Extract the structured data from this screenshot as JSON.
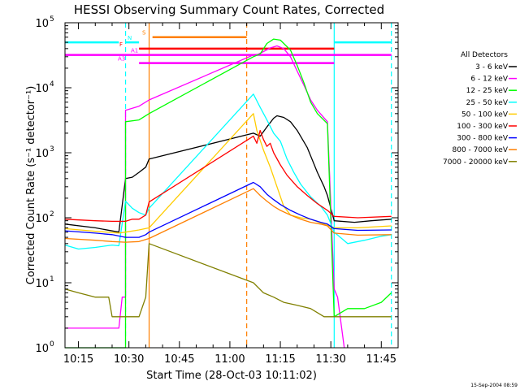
{
  "chart_data": {
    "type": "line",
    "title": "HESSI Observing Summary Count Rates, Corrected",
    "xlabel": "Start Time (28-Oct-03 10:11:02)",
    "ylabel": "Corrected Count Rate (s⁻¹ detector⁻¹)",
    "yscale": "log",
    "xlim": [
      "10:11",
      "11:50"
    ],
    "ylim": [
      1,
      100000
    ],
    "xticks": [
      "10:15",
      "10:30",
      "10:45",
      "11:00",
      "11:15",
      "11:30",
      "11:45"
    ],
    "yticks": [
      {
        "base": "10",
        "exp": "0",
        "value": 1
      },
      {
        "base": "10",
        "exp": "1",
        "value": 10
      },
      {
        "base": "10",
        "exp": "2",
        "value": 100
      },
      {
        "base": "10",
        "exp": "3",
        "value": 1000
      },
      {
        "base": "10",
        "exp": "4",
        "value": 10000
      },
      {
        "base": "10",
        "exp": "5",
        "value": 100000
      }
    ],
    "legend_title": "All Detectors",
    "legend_position": "right",
    "series": [
      {
        "name": "3 - 6 keV",
        "color": "#000000",
        "points": [
          [
            "10:11",
            80
          ],
          [
            "10:20",
            70
          ],
          [
            "10:27",
            60
          ],
          [
            "10:29",
            400
          ],
          [
            "10:31",
            420
          ],
          [
            "10:33",
            500
          ],
          [
            "10:35",
            600
          ],
          [
            "10:36",
            800
          ],
          [
            "11:07",
            2000
          ],
          [
            "11:09",
            1800
          ],
          [
            "11:11",
            2500
          ],
          [
            "11:13",
            3400
          ],
          [
            "11:14",
            3700
          ],
          [
            "11:16",
            3500
          ],
          [
            "11:18",
            3000
          ],
          [
            "11:20",
            2200
          ],
          [
            "11:23",
            1200
          ],
          [
            "11:26",
            500
          ],
          [
            "11:28",
            300
          ],
          [
            "11:29",
            220
          ],
          [
            "11:31",
            90
          ],
          [
            "11:37",
            85
          ],
          [
            "11:42",
            90
          ],
          [
            "11:48",
            95
          ]
        ]
      },
      {
        "name": "6 - 12 keV",
        "color": "#ff00ff",
        "points": [
          [
            "10:11",
            2
          ],
          [
            "10:27",
            2
          ],
          [
            "10:28",
            6
          ],
          [
            "10:29",
            6
          ],
          [
            "10:29",
            4500
          ],
          [
            "10:33",
            5200
          ],
          [
            "10:36",
            6500
          ],
          [
            "11:07",
            32000
          ],
          [
            "11:08",
            32000
          ],
          [
            "11:10",
            36000
          ],
          [
            "11:12",
            41000
          ],
          [
            "11:14",
            44000
          ],
          [
            "11:16",
            40000
          ],
          [
            "11:18",
            30000
          ],
          [
            "11:20",
            18000
          ],
          [
            "11:22",
            11000
          ],
          [
            "11:24",
            6500
          ],
          [
            "11:26",
            4500
          ],
          [
            "11:29",
            3000
          ],
          [
            "11:31",
            8
          ],
          [
            "11:32",
            6
          ],
          [
            "11:34",
            1
          ]
        ]
      },
      {
        "name": "12 - 25 keV",
        "color": "#00ff00",
        "points": [
          [
            "10:11",
            1
          ],
          [
            "10:18",
            1
          ],
          [
            "10:24",
            1
          ],
          [
            "10:29",
            1
          ],
          [
            "10:29",
            3000
          ],
          [
            "10:33",
            3200
          ],
          [
            "10:36",
            4000
          ],
          [
            "11:07",
            30000
          ],
          [
            "11:09",
            33000
          ],
          [
            "11:11",
            48000
          ],
          [
            "11:13",
            56000
          ],
          [
            "11:15",
            54000
          ],
          [
            "11:18",
            38000
          ],
          [
            "11:20",
            22000
          ],
          [
            "11:22",
            12000
          ],
          [
            "11:24",
            6000
          ],
          [
            "11:26",
            4000
          ],
          [
            "11:29",
            2800
          ],
          [
            "11:31",
            3
          ],
          [
            "11:35",
            4
          ],
          [
            "11:40",
            4
          ],
          [
            "11:45",
            5
          ],
          [
            "11:48",
            7
          ]
        ]
      },
      {
        "name": "25 - 50 keV",
        "color": "#00ffff",
        "points": [
          [
            "10:11",
            38
          ],
          [
            "10:15",
            33
          ],
          [
            "10:20",
            35
          ],
          [
            "10:25",
            38
          ],
          [
            "10:27",
            37
          ],
          [
            "10:29",
            180
          ],
          [
            "10:31",
            140
          ],
          [
            "10:33",
            120
          ],
          [
            "10:35",
            110
          ],
          [
            "10:36",
            140
          ],
          [
            "11:07",
            8000
          ],
          [
            "11:09",
            5000
          ],
          [
            "11:11",
            3200
          ],
          [
            "11:13",
            2000
          ],
          [
            "11:15",
            1500
          ],
          [
            "11:17",
            800
          ],
          [
            "11:19",
            500
          ],
          [
            "11:21",
            330
          ],
          [
            "11:24",
            210
          ],
          [
            "11:27",
            150
          ],
          [
            "11:29",
            110
          ],
          [
            "11:31",
            60
          ],
          [
            "11:35",
            40
          ],
          [
            "11:40",
            45
          ],
          [
            "11:45",
            52
          ],
          [
            "11:48",
            55
          ]
        ]
      },
      {
        "name": "50 - 100 keV",
        "color": "#ffcc00",
        "points": [
          [
            "10:11",
            68
          ],
          [
            "10:20",
            62
          ],
          [
            "10:27",
            58
          ],
          [
            "10:29",
            60
          ],
          [
            "10:33",
            65
          ],
          [
            "10:36",
            70
          ],
          [
            "11:07",
            4000
          ],
          [
            "11:08",
            2200
          ],
          [
            "11:10",
            1100
          ],
          [
            "11:12",
            600
          ],
          [
            "11:14",
            300
          ],
          [
            "11:16",
            150
          ],
          [
            "11:18",
            110
          ],
          [
            "11:21",
            100
          ],
          [
            "11:24",
            95
          ],
          [
            "11:28",
            80
          ],
          [
            "11:31",
            70
          ],
          [
            "11:38",
            70
          ],
          [
            "11:48",
            75
          ]
        ]
      },
      {
        "name": "100 - 300 keV",
        "color": "#ff0000",
        "points": [
          [
            "10:11",
            95
          ],
          [
            "10:20",
            90
          ],
          [
            "10:25",
            88
          ],
          [
            "10:29",
            88
          ],
          [
            "10:31",
            95
          ],
          [
            "10:33",
            95
          ],
          [
            "10:35",
            110
          ],
          [
            "10:36",
            175
          ],
          [
            "11:07",
            1800
          ],
          [
            "11:08",
            1400
          ],
          [
            "11:09",
            2200
          ],
          [
            "11:10",
            1600
          ],
          [
            "11:11",
            1250
          ],
          [
            "11:12",
            1400
          ],
          [
            "11:13",
            1000
          ],
          [
            "11:15",
            650
          ],
          [
            "11:17",
            450
          ],
          [
            "11:20",
            300
          ],
          [
            "11:23",
            220
          ],
          [
            "11:26",
            165
          ],
          [
            "11:29",
            130
          ],
          [
            "11:31",
            105
          ],
          [
            "11:38",
            100
          ],
          [
            "11:48",
            105
          ]
        ]
      },
      {
        "name": "300 - 800 keV",
        "color": "#0000ff",
        "points": [
          [
            "10:11",
            63
          ],
          [
            "10:20",
            58
          ],
          [
            "10:25",
            55
          ],
          [
            "10:29",
            50
          ],
          [
            "10:31",
            50
          ],
          [
            "10:33",
            50
          ],
          [
            "10:35",
            55
          ],
          [
            "10:36",
            60
          ],
          [
            "11:07",
            350
          ],
          [
            "11:09",
            300
          ],
          [
            "11:11",
            230
          ],
          [
            "11:13",
            190
          ],
          [
            "11:15",
            160
          ],
          [
            "11:18",
            130
          ],
          [
            "11:21",
            110
          ],
          [
            "11:24",
            95
          ],
          [
            "11:27",
            85
          ],
          [
            "11:29",
            80
          ],
          [
            "11:31",
            68
          ],
          [
            "11:38",
            64
          ],
          [
            "11:48",
            65
          ]
        ]
      },
      {
        "name": "800 - 7000 keV",
        "color": "#ff7f00",
        "points": [
          [
            "10:11",
            48
          ],
          [
            "10:20",
            45
          ],
          [
            "10:25",
            43
          ],
          [
            "10:29",
            42
          ],
          [
            "10:33",
            43
          ],
          [
            "10:36",
            48
          ],
          [
            "11:07",
            280
          ],
          [
            "11:09",
            220
          ],
          [
            "11:11",
            180
          ],
          [
            "11:13",
            150
          ],
          [
            "11:15",
            130
          ],
          [
            "11:18",
            110
          ],
          [
            "11:21",
            95
          ],
          [
            "11:24",
            85
          ],
          [
            "11:27",
            80
          ],
          [
            "11:29",
            75
          ],
          [
            "11:31",
            58
          ],
          [
            "11:38",
            54
          ],
          [
            "11:48",
            55
          ]
        ]
      },
      {
        "name": "7000 - 20000 keV",
        "color": "#808000",
        "points": [
          [
            "10:11",
            8
          ],
          [
            "10:15",
            7
          ],
          [
            "10:20",
            6
          ],
          [
            "10:24",
            6
          ],
          [
            "10:25",
            3
          ],
          [
            "10:29",
            3
          ],
          [
            "10:33",
            3
          ],
          [
            "10:35",
            6
          ],
          [
            "10:36",
            40
          ],
          [
            "11:07",
            10
          ],
          [
            "11:10",
            7
          ],
          [
            "11:13",
            6
          ],
          [
            "11:16",
            5
          ],
          [
            "11:20",
            4.5
          ],
          [
            "11:24",
            4
          ],
          [
            "11:28",
            3
          ],
          [
            "11:31",
            3
          ],
          [
            "11:35",
            3
          ],
          [
            "11:40",
            3
          ],
          [
            "11:45",
            3
          ],
          [
            "11:48",
            3
          ]
        ]
      }
    ],
    "attenuator_levels": [
      {
        "label": "N",
        "color": "#00ffff",
        "value": 50000,
        "segments": [
          [
            "10:11",
            "10:27"
          ],
          [
            "10:29",
            "10:33"
          ],
          [
            "11:31",
            "11:48"
          ]
        ]
      },
      {
        "label": "S",
        "color": "#ff7f00",
        "value": 60000,
        "segments": [
          [
            "10:37",
            "11:05"
          ]
        ]
      },
      {
        "label": "F",
        "color": "#ff0000",
        "value": 40000,
        "segments": [
          [
            "10:33",
            "11:31"
          ]
        ]
      },
      {
        "label": "A1",
        "color": "#ff00ff",
        "value": 32000,
        "segments": [
          [
            "10:11",
            "11:48"
          ]
        ]
      },
      {
        "label": "A3",
        "color": "#ff00ff",
        "value": 24000,
        "segments": [
          [
            "10:33",
            "11:31"
          ]
        ]
      }
    ],
    "vlines": [
      {
        "x": "10:29",
        "color": "#00ffff",
        "style": "dashed"
      },
      {
        "x": "10:36",
        "color": "#ff7f00",
        "style": "solid"
      },
      {
        "x": "11:05",
        "color": "#ff7f00",
        "style": "dashed"
      },
      {
        "x": "11:31",
        "color": "#00ffff",
        "style": "solid"
      },
      {
        "x": "11:48",
        "color": "#00ffff",
        "style": "dashed"
      }
    ],
    "grid": false
  },
  "footer": {
    "timestamp": "15-Sep-2004 08:59"
  }
}
